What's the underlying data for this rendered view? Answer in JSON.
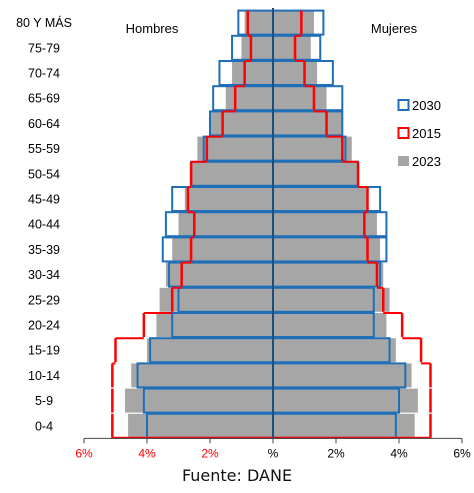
{
  "chart_data": {
    "type": "bar",
    "orientation": "horizontal-population-pyramid",
    "categories": [
      "0-4",
      "5-9",
      "10-14",
      "15-19",
      "20-24",
      "25-29",
      "30-34",
      "35-39",
      "40-44",
      "45-49",
      "50-54",
      "55-59",
      "60-64",
      "65-69",
      "70-74",
      "75-79",
      "80 Y MÁS"
    ],
    "x_axis": {
      "ticks": [
        "6%",
        "4%",
        "2%",
        "%",
        "2%",
        "4%",
        "6%"
      ],
      "tick_values": [
        -6,
        -4,
        -2,
        0,
        2,
        4,
        6
      ],
      "range": [
        -6,
        6
      ],
      "left_tick_color": "#ff0000",
      "right_tick_color": "#000000"
    },
    "side_labels": {
      "left": "Hombres",
      "right": "Mujeres"
    },
    "grid": false,
    "legend_position": "right",
    "series": [
      {
        "name": "2030",
        "style": "outline",
        "color": "#1f6fb8",
        "men": [
          4.0,
          4.1,
          4.3,
          3.9,
          3.2,
          3.0,
          3.3,
          3.5,
          3.4,
          3.2,
          2.6,
          2.2,
          2.0,
          1.9,
          1.7,
          1.3,
          1.1
        ],
        "women": [
          3.9,
          4.0,
          4.2,
          3.7,
          3.2,
          3.2,
          3.4,
          3.6,
          3.6,
          3.4,
          2.7,
          2.3,
          2.2,
          2.2,
          1.9,
          1.5,
          1.6
        ]
      },
      {
        "name": "2015",
        "style": "tick",
        "color": "#ff0000",
        "men": [
          5.1,
          5.1,
          5.1,
          5.0,
          4.1,
          3.2,
          2.9,
          2.6,
          2.5,
          2.7,
          2.6,
          2.1,
          1.6,
          1.2,
          0.9,
          0.7,
          0.8
        ],
        "women": [
          5.0,
          5.0,
          5.0,
          4.7,
          4.1,
          3.5,
          3.3,
          3.0,
          2.9,
          3.0,
          2.7,
          2.2,
          1.7,
          1.3,
          1.0,
          0.7,
          0.9
        ]
      },
      {
        "name": "2023",
        "style": "fill",
        "color": "#a6a6a6",
        "men": [
          4.6,
          4.7,
          4.5,
          4.0,
          3.7,
          3.6,
          3.4,
          3.2,
          3.0,
          2.8,
          2.6,
          2.4,
          2.0,
          1.5,
          1.3,
          1.0,
          0.9
        ],
        "women": [
          4.5,
          4.6,
          4.4,
          3.9,
          3.6,
          3.7,
          3.5,
          3.4,
          3.3,
          3.0,
          2.7,
          2.5,
          2.2,
          1.7,
          1.4,
          1.2,
          1.3
        ]
      }
    ],
    "source": "Fuente: DANE"
  }
}
